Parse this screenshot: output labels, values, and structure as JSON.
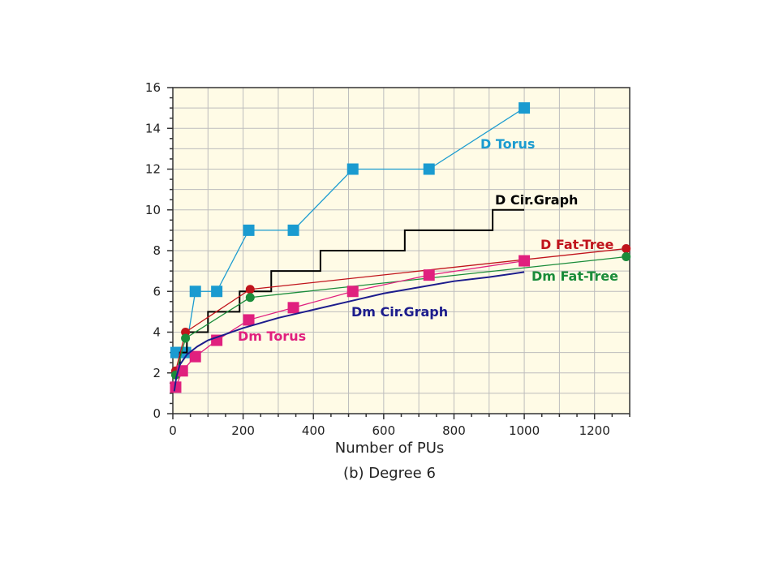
{
  "chart_data": {
    "type": "line",
    "xlabel": "Number of PUs",
    "caption": "(b) Degree 6",
    "xlim": [
      0,
      1300
    ],
    "ylim": [
      0,
      16
    ],
    "x_ticks": [
      0,
      200,
      400,
      600,
      800,
      1000,
      1200
    ],
    "y_ticks": [
      0,
      2,
      4,
      6,
      8,
      10,
      12,
      14,
      16
    ],
    "grid": true,
    "plot_background": "#fffbe6",
    "series": [
      {
        "name": "D Torus",
        "color": "#1a9bd0",
        "marker": "square",
        "x": [
          9,
          16,
          36,
          64,
          125,
          216,
          343,
          512,
          729,
          1000
        ],
        "y": [
          3,
          3,
          3,
          6,
          6,
          9,
          9,
          12,
          12,
          15
        ]
      },
      {
        "name": "D Cir.Graph",
        "color": "#000000",
        "marker": "none",
        "style": "step",
        "x": [
          4,
          20,
          20,
          40,
          40,
          100,
          100,
          190,
          190,
          280,
          280,
          420,
          420,
          660,
          660,
          910,
          910,
          1000
        ],
        "y": [
          2,
          2,
          3,
          3,
          4,
          4,
          5,
          5,
          6,
          6,
          7,
          7,
          8,
          8,
          9,
          9,
          10,
          10
        ]
      },
      {
        "name": "D Fat-Tree",
        "color": "#c0141c",
        "marker": "circle",
        "x": [
          8,
          36,
          220,
          1290
        ],
        "y": [
          2.1,
          4,
          6.1,
          8.1
        ]
      },
      {
        "name": "Dm Fat-Tree",
        "color": "#1a8c3a",
        "marker": "circle",
        "x": [
          8,
          36,
          220,
          1290
        ],
        "y": [
          1.9,
          3.7,
          5.7,
          7.7
        ]
      },
      {
        "name": "Dm Torus",
        "color": "#e0207e",
        "marker": "square",
        "x": [
          8,
          27,
          64,
          125,
          216,
          343,
          512,
          729,
          1000
        ],
        "y": [
          1.3,
          2.1,
          2.8,
          3.6,
          4.6,
          5.2,
          6,
          6.8,
          7.5
        ]
      },
      {
        "name": "Dm Cir.Graph",
        "color": "#1c1c8c",
        "marker": "none",
        "x": [
          4,
          10,
          20,
          40,
          70,
          100,
          150,
          200,
          300,
          400,
          500,
          600,
          700,
          800,
          900,
          1000
        ],
        "y": [
          1.1,
          1.8,
          2.4,
          2.9,
          3.3,
          3.6,
          3.9,
          4.2,
          4.7,
          5.1,
          5.5,
          5.9,
          6.2,
          6.5,
          6.7,
          6.95
        ]
      }
    ]
  }
}
